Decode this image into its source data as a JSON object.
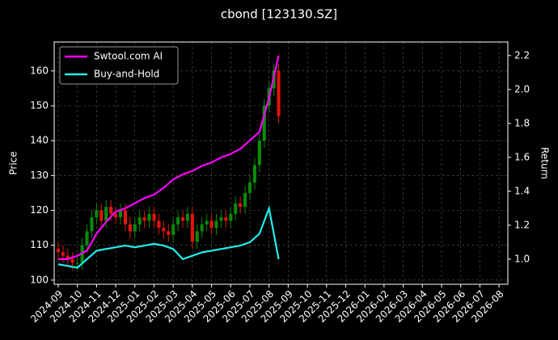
{
  "chart_data": {
    "type": "candlestick",
    "title": "cbond [123130.SZ]",
    "y_label": "Price",
    "y2_label": "Return",
    "xlim": [
      -0.21,
      23.46
    ],
    "xticks": [
      {
        "value": 0,
        "label": "2024-09"
      },
      {
        "value": 1,
        "label": "2024-10"
      },
      {
        "value": 2,
        "label": "2024-11"
      },
      {
        "value": 3,
        "label": "2024-12"
      },
      {
        "value": 4,
        "label": "2025-01"
      },
      {
        "value": 5,
        "label": "2025-02"
      },
      {
        "value": 6,
        "label": "2025-03"
      },
      {
        "value": 7,
        "label": "2025-04"
      },
      {
        "value": 8,
        "label": "2025-05"
      },
      {
        "value": 9,
        "label": "2025-06"
      },
      {
        "value": 10,
        "label": "2025-07"
      },
      {
        "value": 11,
        "label": "2025-08"
      },
      {
        "value": 12,
        "label": "2025-09"
      },
      {
        "value": 13,
        "label": "2025-10"
      },
      {
        "value": 14,
        "label": "2025-11"
      },
      {
        "value": 15,
        "label": "2025-12"
      },
      {
        "value": 16,
        "label": "2026-01"
      },
      {
        "value": 17,
        "label": "2026-02"
      },
      {
        "value": 18,
        "label": "2026-03"
      },
      {
        "value": 19,
        "label": "2026-04"
      },
      {
        "value": 20,
        "label": "2026-05"
      },
      {
        "value": 21,
        "label": "2026-06"
      },
      {
        "value": 22,
        "label": "2026-07"
      },
      {
        "value": 23,
        "label": "2026-08"
      }
    ],
    "ylim": [
      98.8,
      168.3
    ],
    "yticks": [
      100,
      110,
      120,
      130,
      140,
      150,
      160
    ],
    "y2lim": [
      0.852,
      2.28
    ],
    "y2ticks": [
      {
        "value": 1.0,
        "label": "1.0"
      },
      1.2,
      1.4,
      1.6,
      1.8,
      {
        "value": 2.0,
        "label": "2.0"
      },
      2.2
    ],
    "grid": true,
    "legend": "upper left",
    "up_color": "#0a8a0a",
    "down_color": "#e0160c",
    "x": [
      0,
      0.25,
      0.5,
      0.75,
      1,
      1.25,
      1.5,
      1.75,
      2,
      2.25,
      2.5,
      2.75,
      3,
      3.25,
      3.5,
      3.75,
      4,
      4.25,
      4.5,
      4.75,
      5,
      5.25,
      5.5,
      5.75,
      6,
      6.25,
      6.5,
      6.75,
      7,
      7.25,
      7.5,
      7.75,
      8,
      8.25,
      8.5,
      8.75,
      9,
      9.25,
      9.5,
      9.75,
      10,
      10.25,
      10.5,
      10.75,
      11,
      11.25,
      11.5
    ],
    "open": [
      109,
      108,
      107,
      106,
      105,
      105,
      110,
      114,
      118,
      120,
      117,
      121,
      119,
      118,
      120,
      116,
      114,
      116,
      118,
      117,
      119,
      117,
      115,
      114,
      113,
      116,
      118,
      117,
      119,
      111,
      114,
      116,
      117,
      115,
      117,
      118,
      117,
      119,
      122,
      121,
      125,
      128,
      133,
      140,
      150,
      155,
      160
    ],
    "high": [
      111,
      110,
      109,
      108,
      107,
      112,
      116,
      120,
      122,
      122,
      123,
      123,
      121,
      122,
      122,
      118,
      118,
      120,
      120,
      121,
      121,
      119,
      117,
      116,
      118,
      120,
      120,
      121,
      121,
      116,
      118,
      119,
      119,
      119,
      120,
      120,
      121,
      124,
      124,
      127,
      130,
      135,
      142,
      152,
      157,
      162,
      162
    ],
    "low": [
      106,
      105,
      104,
      103,
      103,
      103,
      108,
      112,
      116,
      115,
      115,
      117,
      116,
      116,
      114,
      112,
      112,
      114,
      115,
      115,
      115,
      113,
      112,
      111,
      111,
      114,
      115,
      115,
      109,
      109,
      112,
      114,
      113,
      113,
      115,
      115,
      115,
      117,
      119,
      119,
      123,
      126,
      131,
      138,
      148,
      153,
      145
    ],
    "close": [
      108,
      107,
      106,
      105,
      105,
      110,
      114,
      118,
      120,
      117,
      121,
      119,
      118,
      120,
      116,
      114,
      116,
      118,
      117,
      119,
      117,
      115,
      114,
      113,
      116,
      118,
      117,
      119,
      111,
      114,
      116,
      117,
      115,
      117,
      118,
      117,
      119,
      122,
      121,
      125,
      128,
      133,
      140,
      150,
      155,
      160,
      147
    ],
    "series": [
      {
        "name": "Swtool.com AI",
        "color": "#ff00ff",
        "axis": "y2",
        "x": [
          0,
          0.5,
          1,
          1.5,
          2,
          2.5,
          3,
          3.5,
          4,
          4.5,
          5,
          5.5,
          6,
          6.5,
          7,
          7.5,
          8,
          8.5,
          9,
          9.5,
          10,
          10.5,
          11,
          11.5
        ],
        "values": [
          1.0,
          1.0,
          1.02,
          1.05,
          1.15,
          1.22,
          1.28,
          1.3,
          1.33,
          1.36,
          1.38,
          1.42,
          1.47,
          1.5,
          1.52,
          1.55,
          1.57,
          1.6,
          1.62,
          1.65,
          1.7,
          1.75,
          1.95,
          2.2
        ]
      },
      {
        "name": "Buy-and-Hold",
        "color": "#22eeee",
        "axis": "y2",
        "x": [
          0,
          0.5,
          1,
          1.5,
          2,
          2.5,
          3,
          3.5,
          4,
          4.5,
          5,
          5.5,
          6,
          6.5,
          7,
          7.5,
          8,
          8.5,
          9,
          9.5,
          10,
          10.5,
          11,
          11.5
        ],
        "values": [
          0.97,
          0.96,
          0.95,
          1.0,
          1.05,
          1.06,
          1.07,
          1.08,
          1.07,
          1.08,
          1.09,
          1.08,
          1.06,
          1.0,
          1.02,
          1.04,
          1.05,
          1.06,
          1.07,
          1.08,
          1.1,
          1.15,
          1.3,
          1.0
        ]
      }
    ]
  }
}
